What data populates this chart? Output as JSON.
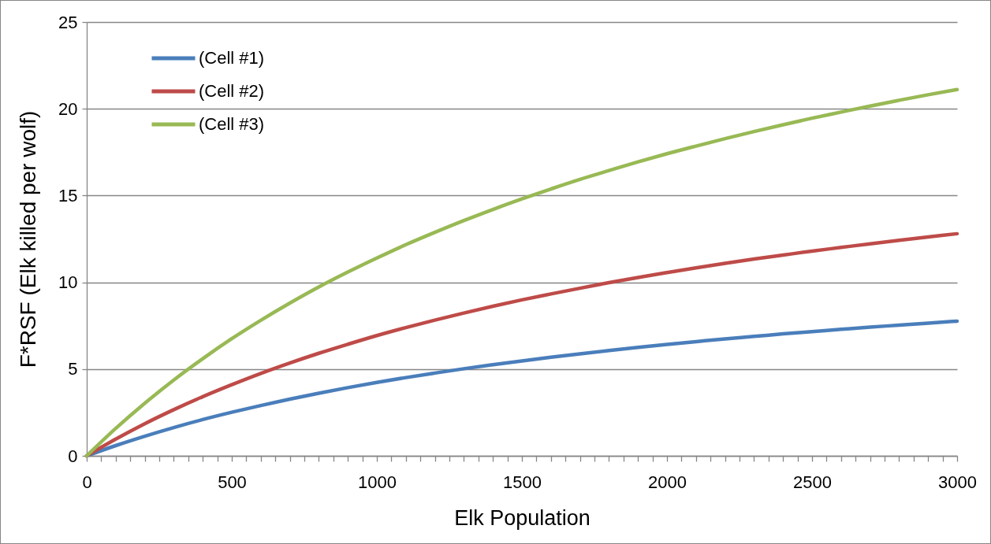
{
  "chart_data": {
    "type": "line",
    "xlabel": "Elk Population",
    "ylabel": "F*RSF (Elk killed per wolf)",
    "x": [
      0,
      100,
      200,
      300,
      400,
      500,
      600,
      700,
      800,
      900,
      1000,
      1100,
      1200,
      1300,
      1400,
      1500,
      1600,
      1700,
      1800,
      1900,
      2000,
      2100,
      2200,
      2300,
      2400,
      2500,
      2600,
      2700,
      2800,
      2900,
      3000
    ],
    "series": [
      {
        "name": "(Cell #1)",
        "color": "#4a7ebb",
        "values": [
          0,
          0.59,
          1.13,
          1.63,
          2.09,
          2.51,
          2.9,
          3.27,
          3.61,
          3.93,
          4.23,
          4.51,
          4.77,
          5.02,
          5.25,
          5.47,
          5.68,
          5.88,
          6.07,
          6.25,
          6.42,
          6.58,
          6.74,
          6.88,
          7.03,
          7.16,
          7.29,
          7.42,
          7.53,
          7.65,
          7.76
        ]
      },
      {
        "name": "(Cell #2)",
        "color": "#be4b48",
        "values": [
          0,
          0.96,
          1.85,
          2.66,
          3.41,
          4.1,
          4.75,
          5.35,
          5.91,
          6.43,
          6.93,
          7.39,
          7.82,
          8.23,
          8.62,
          8.99,
          9.33,
          9.66,
          9.98,
          10.28,
          10.56,
          10.83,
          11.09,
          11.34,
          11.57,
          11.8,
          12.01,
          12.22,
          12.42,
          12.61,
          12.8
        ]
      },
      {
        "name": "(Cell #3)",
        "color": "#98b954",
        "values": [
          0,
          1.58,
          3.03,
          4.37,
          5.6,
          6.75,
          7.81,
          8.8,
          9.73,
          10.59,
          11.4,
          12.17,
          12.88,
          13.56,
          14.2,
          14.81,
          15.38,
          15.93,
          16.44,
          16.94,
          17.41,
          17.85,
          18.28,
          18.69,
          19.08,
          19.46,
          19.81,
          20.16,
          20.49,
          20.81,
          21.11
        ]
      }
    ],
    "xlim": [
      0,
      3000
    ],
    "ylim": [
      0,
      25
    ],
    "xticks": [
      0,
      {
        "value": 50,
        "label": null
      },
      {
        "value": 100,
        "label": null
      },
      {
        "value": 150,
        "label": null
      },
      {
        "value": 200,
        "label": null
      },
      {
        "value": 250,
        "label": null
      },
      {
        "value": 300,
        "label": null
      },
      {
        "value": 350,
        "label": null
      },
      {
        "value": 400,
        "label": null
      },
      {
        "value": 450,
        "label": null
      },
      500,
      {
        "value": 550,
        "label": null
      },
      {
        "value": 600,
        "label": null
      },
      {
        "value": 650,
        "label": null
      },
      {
        "value": 700,
        "label": null
      },
      {
        "value": 750,
        "label": null
      },
      {
        "value": 800,
        "label": null
      },
      {
        "value": 850,
        "label": null
      },
      {
        "value": 900,
        "label": null
      },
      {
        "value": 950,
        "label": null
      },
      1000,
      {
        "value": 1050,
        "label": null
      },
      {
        "value": 1100,
        "label": null
      },
      {
        "value": 1150,
        "label": null
      },
      {
        "value": 1200,
        "label": null
      },
      {
        "value": 1250,
        "label": null
      },
      {
        "value": 1300,
        "label": null
      },
      {
        "value": 1350,
        "label": null
      },
      {
        "value": 1400,
        "label": null
      },
      {
        "value": 1450,
        "label": null
      },
      1500,
      {
        "value": 1550,
        "label": null
      },
      {
        "value": 1600,
        "label": null
      },
      {
        "value": 1650,
        "label": null
      },
      {
        "value": 1700,
        "label": null
      },
      {
        "value": 1750,
        "label": null
      },
      {
        "value": 1800,
        "label": null
      },
      {
        "value": 1850,
        "label": null
      },
      {
        "value": 1900,
        "label": null
      },
      {
        "value": 1950,
        "label": null
      },
      2000,
      {
        "value": 2050,
        "label": null
      },
      {
        "value": 2100,
        "label": null
      },
      {
        "value": 2150,
        "label": null
      },
      {
        "value": 2200,
        "label": null
      },
      {
        "value": 2250,
        "label": null
      },
      {
        "value": 2300,
        "label": null
      },
      {
        "value": 2350,
        "label": null
      },
      {
        "value": 2400,
        "label": null
      },
      {
        "value": 2450,
        "label": null
      },
      2500,
      {
        "value": 2550,
        "label": null
      },
      {
        "value": 2600,
        "label": null
      },
      {
        "value": 2650,
        "label": null
      },
      {
        "value": 2700,
        "label": null
      },
      {
        "value": 2750,
        "label": null
      },
      {
        "value": 2800,
        "label": null
      },
      {
        "value": 2850,
        "label": null
      },
      {
        "value": 2900,
        "label": null
      },
      {
        "value": 2950,
        "label": null
      },
      3000
    ],
    "yticks": [
      0,
      5,
      10,
      15,
      20,
      25
    ],
    "grid": "y",
    "legend": "top left"
  }
}
